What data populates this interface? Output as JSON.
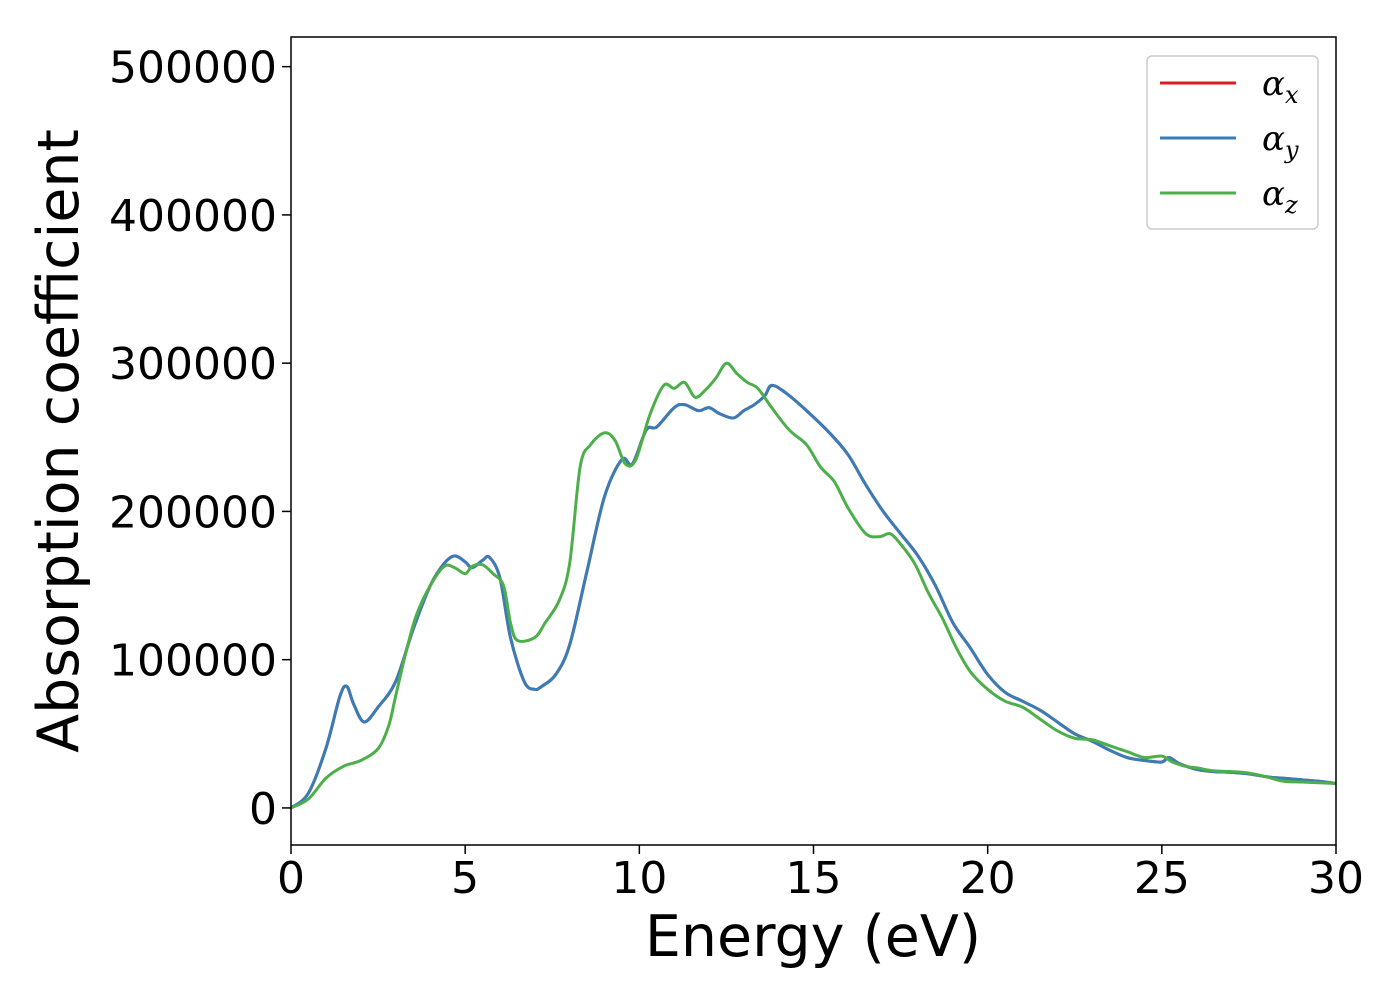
{
  "chart_data": {
    "type": "line",
    "title": "",
    "xlabel": "Energy (eV)",
    "ylabel": "Absorption coefficient",
    "xlim": [
      0,
      30
    ],
    "ylim": [
      -25000,
      520000
    ],
    "xticks": [
      0,
      5,
      10,
      15,
      20,
      25,
      30
    ],
    "yticks": [
      0,
      100000,
      200000,
      300000,
      400000,
      500000
    ],
    "xtick_labels": [
      "0",
      "5",
      "10",
      "15",
      "20",
      "25",
      "30"
    ],
    "ytick_labels": [
      "0",
      "100000",
      "200000",
      "300000",
      "400000",
      "500000"
    ],
    "grid": false,
    "legend_position": "top-right",
    "series": [
      {
        "name": "αx",
        "symbol": "α",
        "subscript": "x",
        "color": "#e41a1c",
        "x": [
          0,
          0.5,
          1.0,
          1.4,
          1.6,
          1.8,
          2.1,
          2.5,
          3.0,
          3.5,
          4.0,
          4.4,
          4.7,
          5.0,
          5.2,
          5.5,
          5.7,
          6.0,
          6.3,
          6.7,
          7.0,
          7.2,
          7.6,
          8.0,
          8.5,
          9.0,
          9.5,
          9.8,
          10.2,
          10.5,
          11.0,
          11.3,
          11.7,
          12.0,
          12.3,
          12.7,
          13.0,
          13.3,
          13.6,
          13.8,
          14.2,
          14.8,
          15.5,
          16.0,
          16.5,
          17.0,
          17.5,
          18.0,
          18.5,
          19.0,
          19.5,
          20.0,
          20.5,
          21.0,
          21.5,
          22.0,
          22.5,
          23.0,
          23.5,
          24.0,
          24.5,
          25.0,
          25.2,
          25.5,
          26.0,
          26.5,
          27.0,
          27.5,
          28.0,
          28.5,
          29.0,
          29.5,
          30.0
        ],
        "values": [
          0,
          10000,
          40000,
          75000,
          82000,
          70000,
          58000,
          68000,
          85000,
          120000,
          150000,
          165000,
          170000,
          166000,
          162000,
          167000,
          169000,
          155000,
          115000,
          85000,
          80000,
          82000,
          90000,
          110000,
          160000,
          210000,
          235000,
          232000,
          255000,
          257000,
          270000,
          272000,
          268000,
          270000,
          266000,
          263000,
          268000,
          272000,
          278000,
          285000,
          280000,
          268000,
          252000,
          238000,
          218000,
          200000,
          185000,
          170000,
          150000,
          125000,
          108000,
          90000,
          78000,
          72000,
          66000,
          58000,
          50000,
          45000,
          39000,
          34000,
          32000,
          31000,
          34000,
          30000,
          26000,
          24500,
          24000,
          23000,
          21000,
          20000,
          19000,
          18000,
          16500
        ]
      },
      {
        "name": "αy",
        "symbol": "α",
        "subscript": "y",
        "color": "#377eb8",
        "x": [
          0,
          0.5,
          1.0,
          1.4,
          1.6,
          1.8,
          2.1,
          2.5,
          3.0,
          3.5,
          4.0,
          4.4,
          4.7,
          5.0,
          5.2,
          5.5,
          5.7,
          6.0,
          6.3,
          6.7,
          7.0,
          7.2,
          7.6,
          8.0,
          8.5,
          9.0,
          9.5,
          9.8,
          10.2,
          10.5,
          11.0,
          11.3,
          11.7,
          12.0,
          12.3,
          12.7,
          13.0,
          13.3,
          13.6,
          13.8,
          14.2,
          14.8,
          15.5,
          16.0,
          16.5,
          17.0,
          17.5,
          18.0,
          18.5,
          19.0,
          19.5,
          20.0,
          20.5,
          21.0,
          21.5,
          22.0,
          22.5,
          23.0,
          23.5,
          24.0,
          24.5,
          25.0,
          25.2,
          25.5,
          26.0,
          26.5,
          27.0,
          27.5,
          28.0,
          28.5,
          29.0,
          29.5,
          30.0
        ],
        "values": [
          0,
          10000,
          40000,
          75000,
          82000,
          70000,
          58000,
          68000,
          85000,
          120000,
          150000,
          165000,
          170000,
          166000,
          162000,
          167000,
          169000,
          155000,
          115000,
          85000,
          80000,
          82000,
          90000,
          110000,
          160000,
          210000,
          235000,
          232000,
          255000,
          257000,
          270000,
          272000,
          268000,
          270000,
          266000,
          263000,
          268000,
          272000,
          278000,
          285000,
          280000,
          268000,
          252000,
          238000,
          218000,
          200000,
          185000,
          170000,
          150000,
          125000,
          108000,
          90000,
          78000,
          72000,
          66000,
          58000,
          50000,
          45000,
          39000,
          34000,
          32000,
          31000,
          34000,
          30000,
          26000,
          24500,
          24000,
          23000,
          21000,
          20000,
          19000,
          18000,
          16500
        ]
      },
      {
        "name": "αz",
        "symbol": "α",
        "subscript": "z",
        "color": "#4daf4a",
        "x": [
          0,
          0.5,
          1.0,
          1.5,
          2.0,
          2.5,
          2.8,
          3.0,
          3.3,
          3.6,
          4.0,
          4.4,
          4.7,
          5.0,
          5.2,
          5.5,
          5.8,
          6.1,
          6.3,
          6.5,
          7.0,
          7.3,
          7.7,
          8.0,
          8.3,
          8.6,
          9.0,
          9.3,
          9.6,
          9.9,
          10.3,
          10.7,
          11.0,
          11.3,
          11.6,
          11.9,
          12.2,
          12.5,
          12.8,
          13.1,
          13.4,
          13.8,
          14.3,
          14.8,
          15.2,
          15.6,
          16.0,
          16.5,
          16.9,
          17.2,
          17.5,
          17.9,
          18.3,
          18.7,
          19.1,
          19.5,
          20.0,
          20.5,
          21.0,
          21.5,
          22.0,
          22.5,
          23.0,
          23.5,
          24.0,
          24.5,
          25.0,
          25.3,
          25.7,
          26.0,
          26.5,
          27.0,
          27.5,
          28.0,
          28.5,
          29.0,
          29.5,
          30.0
        ],
        "values": [
          0,
          6000,
          20000,
          28000,
          32000,
          40000,
          55000,
          75000,
          105000,
          130000,
          150000,
          163000,
          162000,
          158000,
          163000,
          164000,
          158000,
          150000,
          125000,
          113000,
          115000,
          125000,
          140000,
          165000,
          230000,
          245000,
          253000,
          248000,
          232000,
          235000,
          265000,
          285000,
          283000,
          287000,
          277000,
          282000,
          290000,
          300000,
          293000,
          287000,
          283000,
          270000,
          255000,
          245000,
          230000,
          220000,
          202000,
          185000,
          183000,
          185000,
          178000,
          165000,
          145000,
          128000,
          108000,
          92000,
          80000,
          72000,
          68000,
          60000,
          52000,
          47000,
          46000,
          42000,
          38000,
          34000,
          35000,
          31000,
          28000,
          27000,
          25000,
          24500,
          23500,
          21000,
          18000,
          17500,
          17000,
          16500
        ]
      }
    ]
  }
}
